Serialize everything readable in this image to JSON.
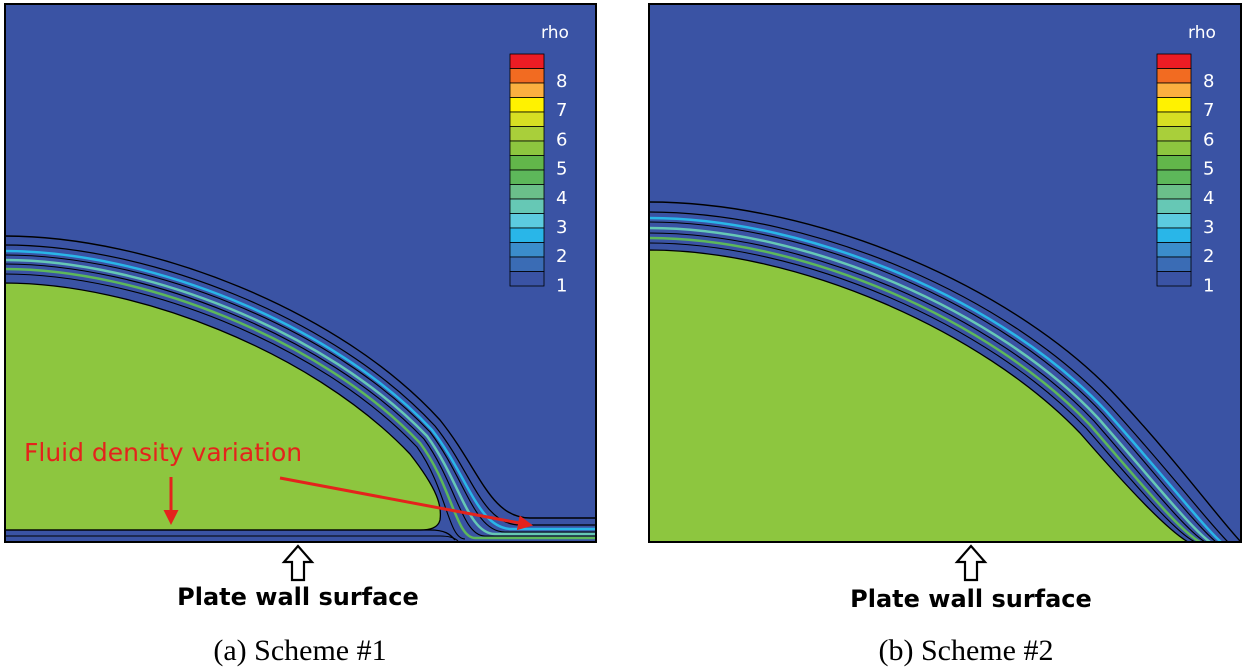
{
  "colors": {
    "background": "#3a53a4",
    "droplet": "#8dc63f",
    "contour": "#000000",
    "annotation": "#e4231c",
    "colorbar_ticks": "#ffffff"
  },
  "colorbar": {
    "title": "rho",
    "tick_labels": [
      "8",
      "7",
      "6",
      "5",
      "4",
      "3",
      "2",
      "1"
    ],
    "levels": [
      {
        "value": 1.0,
        "color": "#3a53a4"
      },
      {
        "value": 1.5,
        "color": "#3a6cb5"
      },
      {
        "value": 2.0,
        "color": "#3b8dcb"
      },
      {
        "value": 2.5,
        "color": "#29b6e8"
      },
      {
        "value": 3.0,
        "color": "#5ccbdf"
      },
      {
        "value": 3.5,
        "color": "#66c8b5"
      },
      {
        "value": 4.0,
        "color": "#6bbf8a"
      },
      {
        "value": 4.5,
        "color": "#5db75a"
      },
      {
        "value": 5.0,
        "color": "#62b64a"
      },
      {
        "value": 5.5,
        "color": "#8dc63f"
      },
      {
        "value": 6.0,
        "color": "#a9cf3a"
      },
      {
        "value": 6.5,
        "color": "#d7df23"
      },
      {
        "value": 7.0,
        "color": "#fff200"
      },
      {
        "value": 7.5,
        "color": "#fbb040"
      },
      {
        "value": 8.0,
        "color": "#f26b21"
      },
      {
        "value": 8.5,
        "color": "#ed1c24"
      }
    ]
  },
  "panels": [
    {
      "id": "a",
      "caption": "(a) Scheme #1",
      "wall_label": "Plate wall surface",
      "annotation": "Fluid density variation"
    },
    {
      "id": "b",
      "caption": "(b) Scheme #2",
      "wall_label": "Plate wall surface"
    }
  ]
}
